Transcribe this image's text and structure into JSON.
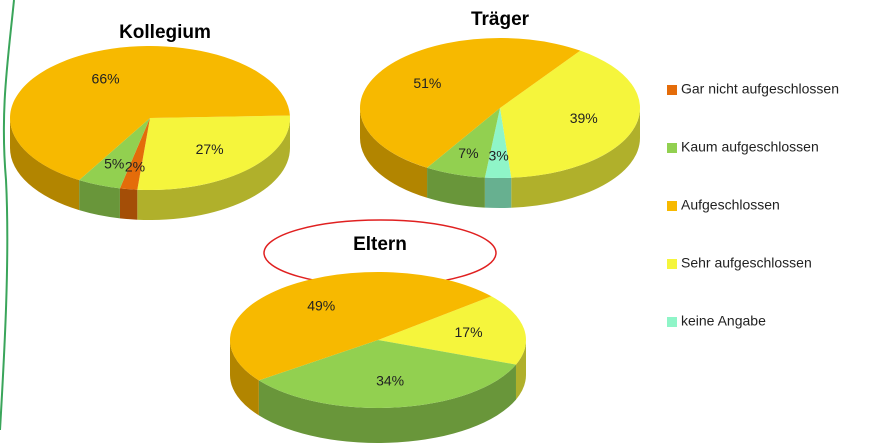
{
  "chart_data": [
    {
      "type": "pie",
      "title": "Kollegium",
      "categories": [
        "Sehr aufgeschlossen",
        "Gar nicht aufgeschlossen",
        "Kaum aufgeschlossen",
        "Aufgeschlossen"
      ],
      "values": [
        27,
        2,
        5,
        66
      ],
      "value_labels": [
        "27%",
        "2%",
        "5%",
        "66%"
      ],
      "colors": [
        "#f5f53c",
        "#e46c0a",
        "#92d050",
        "#f7b900"
      ]
    },
    {
      "type": "pie",
      "title": "Träger",
      "categories": [
        "Sehr aufgeschlossen",
        "keine Angabe",
        "Kaum aufgeschlossen",
        "Aufgeschlossen"
      ],
      "values": [
        39,
        3,
        7,
        51
      ],
      "value_labels": [
        "39%",
        "3%",
        "7%",
        "51%"
      ],
      "colors": [
        "#f5f53c",
        "#8ff5c8",
        "#92d050",
        "#f7b900"
      ]
    },
    {
      "type": "pie",
      "title": "Eltern",
      "categories": [
        "Sehr aufgeschlossen",
        "Kaum aufgeschlossen",
        "Aufgeschlossen"
      ],
      "values": [
        17,
        34,
        49
      ],
      "value_labels": [
        "17%",
        "34%",
        "49%"
      ],
      "colors": [
        "#f5f53c",
        "#92d050",
        "#f7b900"
      ]
    }
  ],
  "legend": {
    "items": [
      {
        "name": "Gar nicht aufgeschlossen",
        "color": "#e46c0a"
      },
      {
        "name": "Kaum aufgeschlossen",
        "color": "#92d050"
      },
      {
        "name": "Aufgeschlossen",
        "color": "#f7b900"
      },
      {
        "name": "Sehr aufgeschlossen",
        "color": "#f5f53c"
      },
      {
        "name": "keine Angabe",
        "color": "#8ff5c8"
      }
    ]
  }
}
